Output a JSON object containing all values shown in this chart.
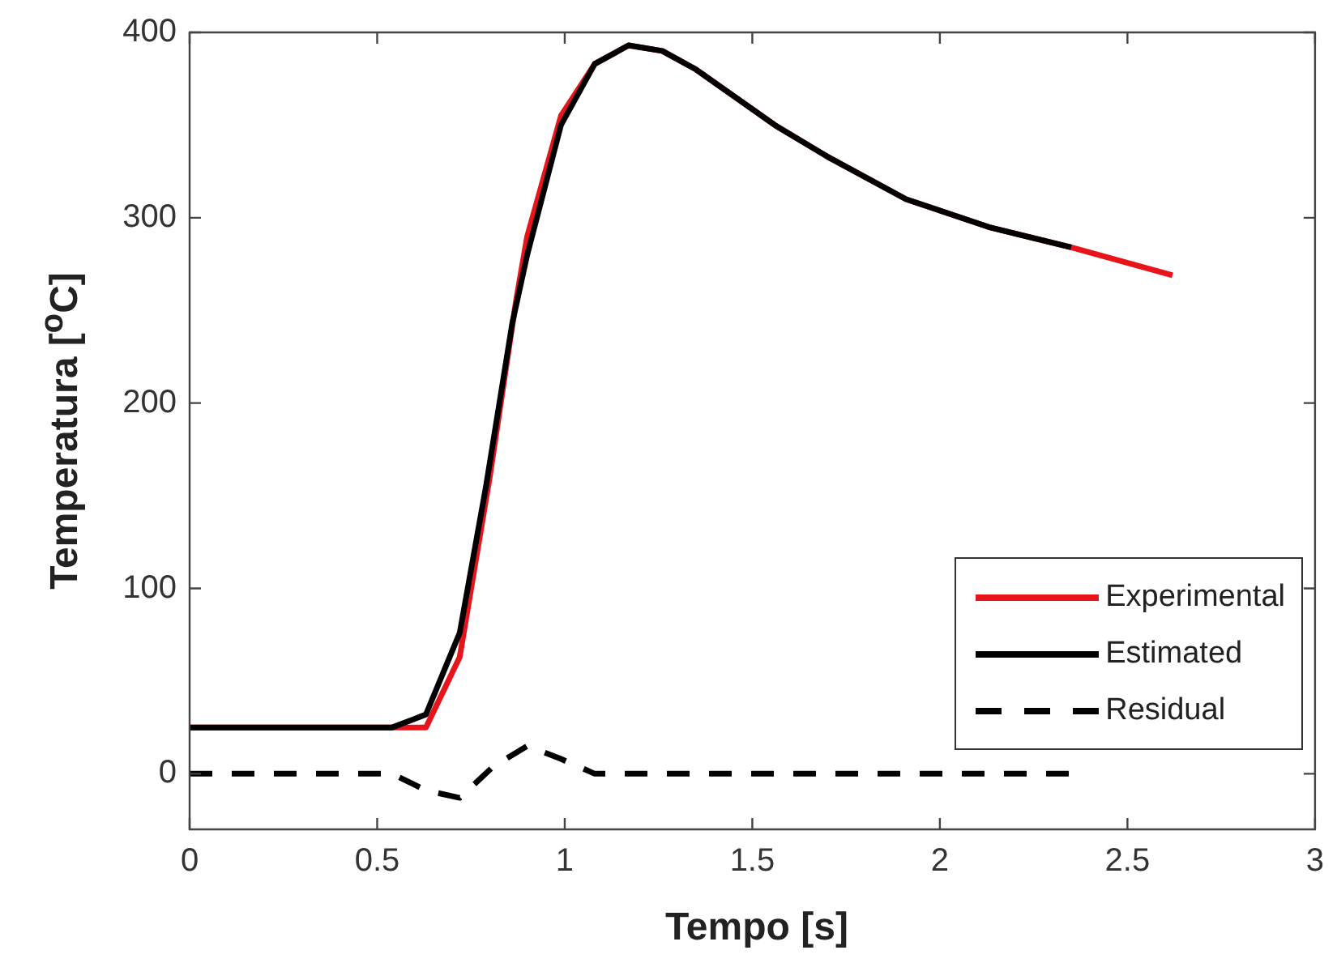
{
  "chart_data": {
    "type": "line",
    "xlabel": "Tempo [s]",
    "ylabel": "Temperatura [$^{o}$C]",
    "xlim": [
      0,
      3
    ],
    "xticks": [
      0,
      0.5,
      1,
      1.5,
      2,
      2.5,
      3
    ],
    "ylim": [
      -30,
      400
    ],
    "yticks": [
      0,
      100,
      200,
      300,
      400
    ],
    "grid": false,
    "legend": "bottom right",
    "marker": "none",
    "series": [
      {
        "name": "Experimental",
        "color": "#e8141b",
        "line_style": "solid",
        "x": [
          0,
          0.54,
          0.63,
          0.72,
          0.8,
          0.87,
          0.9,
          0.99,
          1.08,
          1.17,
          1.26,
          1.35,
          1.56,
          1.7,
          1.91,
          2.13,
          2.35,
          2.62
        ],
        "values": [
          25,
          25,
          25,
          63,
          160,
          255,
          290,
          355,
          383,
          393,
          390,
          380,
          350,
          333,
          310,
          295,
          284,
          269
        ]
      },
      {
        "name": "Estimated",
        "color": "#000000",
        "line_style": "solid",
        "x": [
          0,
          0.54,
          0.63,
          0.72,
          0.79,
          0.86,
          0.9,
          0.99,
          1.08,
          1.17,
          1.26,
          1.35,
          1.56,
          1.7,
          1.91,
          2.13,
          2.35
        ],
        "values": [
          25,
          25,
          32,
          76,
          155,
          243,
          280,
          350,
          383,
          393,
          390,
          380,
          350,
          333,
          310,
          295,
          284
        ]
      },
      {
        "name": "Residual",
        "color": "#000000",
        "line_style": "dashed",
        "x": [
          0,
          0.54,
          0.63,
          0.72,
          0.81,
          0.9,
          0.99,
          1.08,
          2.35
        ],
        "values": [
          0,
          0,
          -9,
          -13,
          4,
          15,
          8,
          0,
          0
        ]
      }
    ]
  }
}
